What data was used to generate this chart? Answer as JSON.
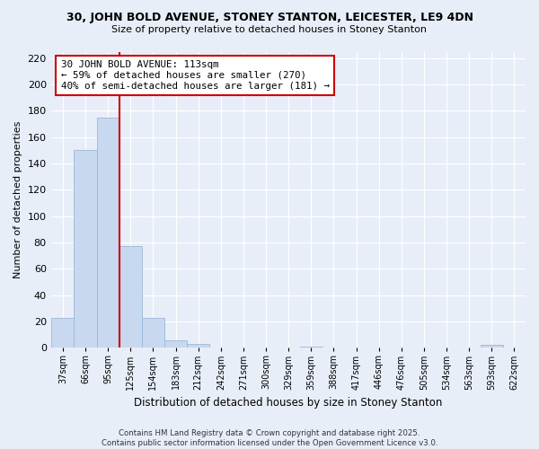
{
  "title": "30, JOHN BOLD AVENUE, STONEY STANTON, LEICESTER, LE9 4DN",
  "subtitle": "Size of property relative to detached houses in Stoney Stanton",
  "xlabel": "Distribution of detached houses by size in Stoney Stanton",
  "ylabel": "Number of detached properties",
  "bin_labels": [
    "37sqm",
    "66sqm",
    "95sqm",
    "125sqm",
    "154sqm",
    "183sqm",
    "212sqm",
    "242sqm",
    "271sqm",
    "300sqm",
    "329sqm",
    "359sqm",
    "388sqm",
    "417sqm",
    "446sqm",
    "476sqm",
    "505sqm",
    "534sqm",
    "563sqm",
    "593sqm",
    "622sqm"
  ],
  "bar_values": [
    23,
    150,
    175,
    77,
    23,
    6,
    3,
    0,
    0,
    0,
    0,
    1,
    0,
    0,
    0,
    0,
    0,
    0,
    0,
    2,
    0
  ],
  "bar_color": "#c8d8ee",
  "bar_edge_color": "#9ab8d8",
  "vline_color": "#cc0000",
  "annotation_text": "30 JOHN BOLD AVENUE: 113sqm\n← 59% of detached houses are smaller (270)\n40% of semi-detached houses are larger (181) →",
  "annotation_box_color": "white",
  "annotation_box_edge_color": "#cc0000",
  "ylim": [
    0,
    225
  ],
  "yticks": [
    0,
    20,
    40,
    60,
    80,
    100,
    120,
    140,
    160,
    180,
    200,
    220
  ],
  "footer_line1": "Contains HM Land Registry data © Crown copyright and database right 2025.",
  "footer_line2": "Contains public sector information licensed under the Open Government Licence v3.0.",
  "bg_color": "#e8eef8",
  "grid_color": "#ffffff"
}
